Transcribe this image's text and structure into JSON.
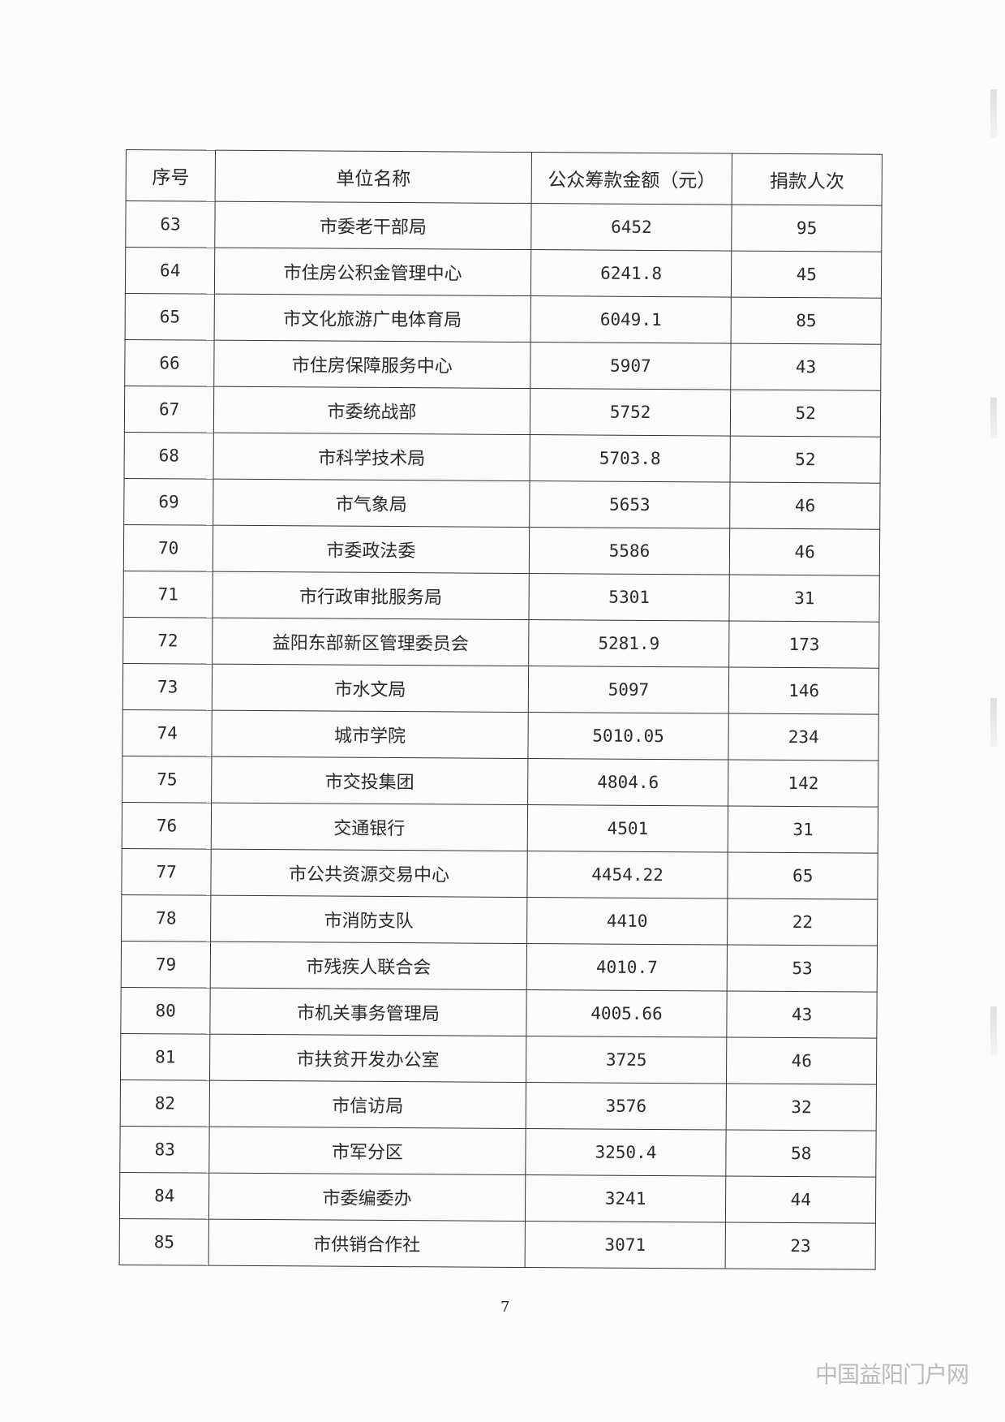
{
  "table": {
    "headers": [
      "序号",
      "单位名称",
      "公众筹款金额（元）",
      "捐款人次"
    ],
    "rows": [
      [
        "63",
        "市委老干部局",
        "6452",
        "95"
      ],
      [
        "64",
        "市住房公积金管理中心",
        "6241.8",
        "45"
      ],
      [
        "65",
        "市文化旅游广电体育局",
        "6049.1",
        "85"
      ],
      [
        "66",
        "市住房保障服务中心",
        "5907",
        "43"
      ],
      [
        "67",
        "市委统战部",
        "5752",
        "52"
      ],
      [
        "68",
        "市科学技术局",
        "5703.8",
        "52"
      ],
      [
        "69",
        "市气象局",
        "5653",
        "46"
      ],
      [
        "70",
        "市委政法委",
        "5586",
        "46"
      ],
      [
        "71",
        "市行政审批服务局",
        "5301",
        "31"
      ],
      [
        "72",
        "益阳东部新区管理委员会",
        "5281.9",
        "173"
      ],
      [
        "73",
        "市水文局",
        "5097",
        "146"
      ],
      [
        "74",
        "城市学院",
        "5010.05",
        "234"
      ],
      [
        "75",
        "市交投集团",
        "4804.6",
        "142"
      ],
      [
        "76",
        "交通银行",
        "4501",
        "31"
      ],
      [
        "77",
        "市公共资源交易中心",
        "4454.22",
        "65"
      ],
      [
        "78",
        "市消防支队",
        "4410",
        "22"
      ],
      [
        "79",
        "市残疾人联合会",
        "4010.7",
        "53"
      ],
      [
        "80",
        "市机关事务管理局",
        "4005.66",
        "43"
      ],
      [
        "81",
        "市扶贫开发办公室",
        "3725",
        "46"
      ],
      [
        "82",
        "市信访局",
        "3576",
        "32"
      ],
      [
        "83",
        "市军分区",
        "3250.4",
        "58"
      ],
      [
        "84",
        "市委编委办",
        "3241",
        "44"
      ],
      [
        "85",
        "市供销合作社",
        "3071",
        "23"
      ]
    ]
  },
  "page_number": "7",
  "watermark": "中国益阳门户网"
}
